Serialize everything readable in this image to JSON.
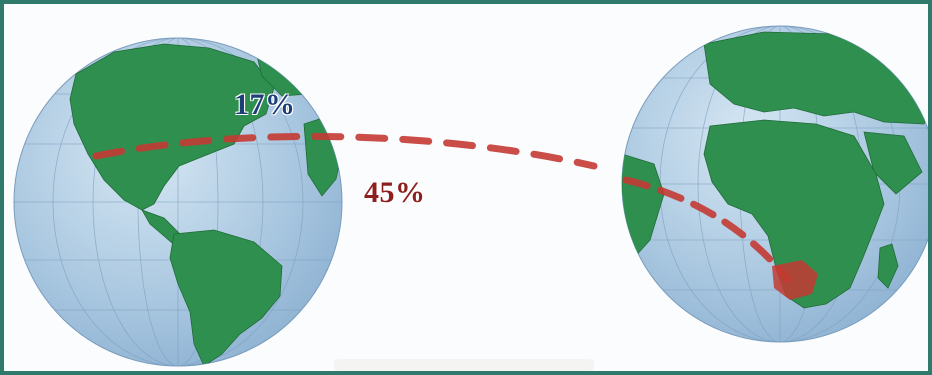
{
  "figure": {
    "labels": [
      {
        "text": "17%",
        "color": "#1d3f78"
      },
      {
        "text": "45%",
        "color": "#8e1f1f"
      }
    ],
    "colors": {
      "ocean": "#a9c7e0",
      "land": "#2f8f4f",
      "route": "#c43a33",
      "frame": "#2f7a6a",
      "highlight_region": "#c43a33"
    },
    "globes": [
      "americas-globe",
      "africa-globe"
    ]
  }
}
